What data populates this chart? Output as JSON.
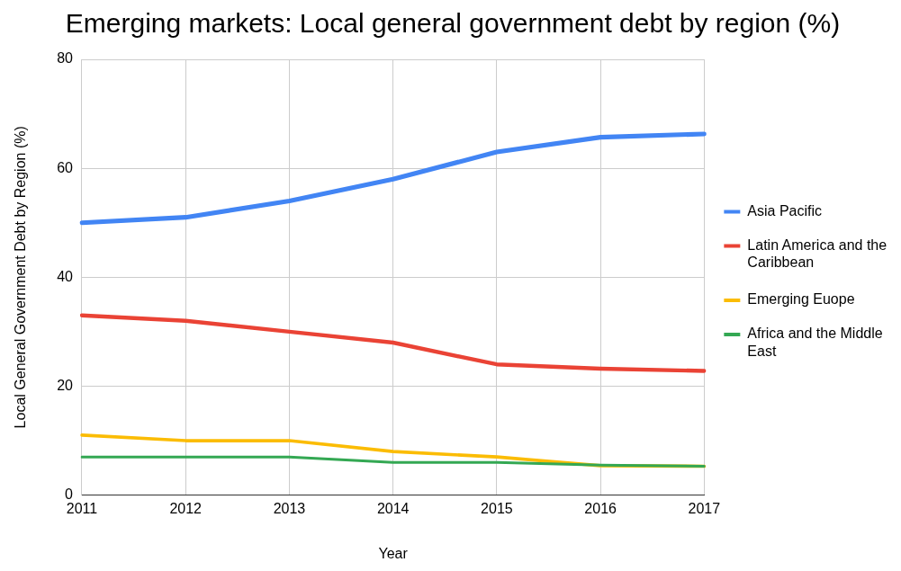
{
  "chart_data": {
    "type": "line",
    "title": "Emerging markets: Local general government debt by region (%)",
    "xlabel": "Year",
    "ylabel": "Local General Government Debt by Region (%)",
    "categories": [
      "2011",
      "2012",
      "2013",
      "2014",
      "2015",
      "2016",
      "2017"
    ],
    "series": [
      {
        "name": "Asia Pacific",
        "color": "#4285f4",
        "values": [
          50,
          51,
          54,
          58,
          63,
          65.7,
          66.3
        ]
      },
      {
        "name": "Latin America and the Caribbean",
        "color": "#ea4335",
        "values": [
          33,
          32,
          30,
          28,
          24,
          23.2,
          22.8
        ]
      },
      {
        "name": "Emerging Euope",
        "color": "#fbbc04",
        "values": [
          11,
          10,
          10,
          8,
          7,
          5.4,
          5.3
        ]
      },
      {
        "name": "Africa and the Middle East",
        "color": "#34a853",
        "values": [
          7,
          7,
          7,
          6,
          6,
          5.5,
          5.3
        ]
      }
    ],
    "ylim": [
      0,
      80
    ],
    "yticks": [
      0,
      20,
      40,
      60,
      80
    ],
    "grid": true,
    "legend": "right",
    "marker": "none",
    "line_style": "solid"
  }
}
